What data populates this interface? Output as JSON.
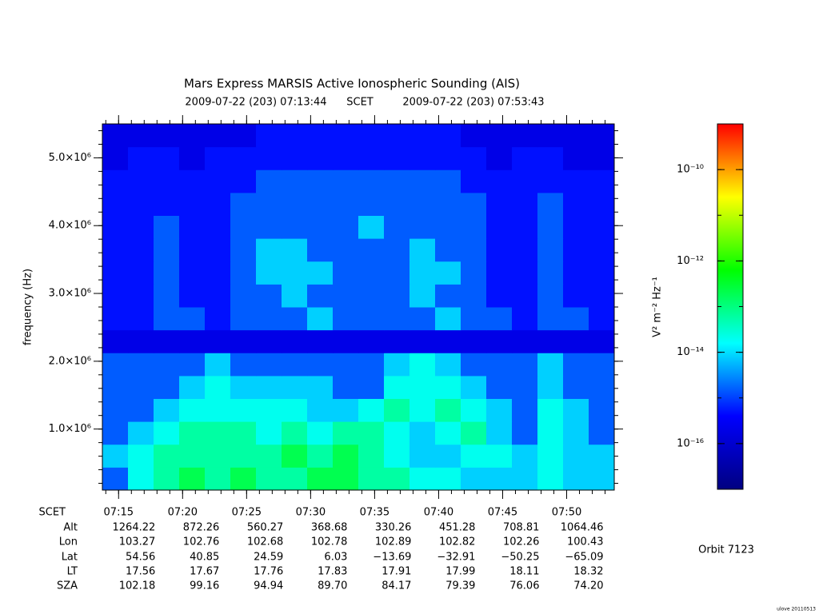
{
  "chart_data": {
    "type": "spectrogram",
    "title": "Mars Express MARSIS Active Ionospheric Sounding (AIS)",
    "start_label": "2009-07-22 (203) 07:13:44",
    "x_label": "SCET",
    "end_label": "2009-07-22 (203) 07:53:43",
    "y_label": "frequency (Hz)",
    "xlim": [
      "07:13:44",
      "07:53:43"
    ],
    "xticks": [
      "07:15",
      "07:20",
      "07:25",
      "07:30",
      "07:35",
      "07:40",
      "07:45",
      "07:50"
    ],
    "ylim": [
      100000,
      5500000
    ],
    "yticks": [
      {
        "value": 1000000,
        "label": "1.0×10⁶"
      },
      {
        "value": 2000000,
        "label": "2.0×10⁶"
      },
      {
        "value": 3000000,
        "label": "3.0×10⁶"
      },
      {
        "value": 4000000,
        "label": "4.0×10⁶"
      },
      {
        "value": 5000000,
        "label": "5.0×10⁶"
      }
    ],
    "z": [
      [
        1.5e-15,
        2e-14,
        6e-14,
        2e-13,
        6e-14,
        2e-13,
        6e-14,
        6e-14,
        2e-13,
        2e-13,
        6e-14,
        6e-14,
        2e-14,
        2e-14,
        8e-15,
        8e-15,
        8e-15,
        2e-14,
        8e-15,
        8e-15
      ],
      [
        8e-15,
        2e-14,
        6e-14,
        6e-14,
        6e-14,
        6e-14,
        6e-14,
        2e-13,
        6e-14,
        2e-13,
        6e-14,
        2e-14,
        8e-15,
        8e-15,
        2e-14,
        2e-14,
        8e-15,
        2e-14,
        8e-15,
        8e-15
      ],
      [
        1.5e-15,
        8e-15,
        2e-14,
        6e-14,
        6e-14,
        6e-14,
        2e-14,
        6e-14,
        2e-14,
        6e-14,
        6e-14,
        2e-14,
        8e-15,
        2e-14,
        6e-14,
        8e-15,
        1.5e-15,
        2e-14,
        8e-15,
        1.5e-15
      ],
      [
        1.5e-15,
        1.5e-15,
        8e-15,
        2e-14,
        2e-14,
        2e-14,
        2e-14,
        2e-14,
        8e-15,
        8e-15,
        2e-14,
        6e-14,
        2e-14,
        6e-14,
        2e-14,
        8e-15,
        1.5e-15,
        2e-14,
        8e-15,
        1.5e-15
      ],
      [
        1.5e-15,
        1.5e-15,
        1.5e-15,
        8e-15,
        2e-14,
        8e-15,
        8e-15,
        8e-15,
        8e-15,
        1.5e-15,
        1.5e-15,
        2e-14,
        2e-14,
        2e-14,
        8e-15,
        1.5e-15,
        1.5e-15,
        8e-15,
        1.5e-15,
        1.5e-15
      ],
      [
        1.5e-15,
        1.5e-15,
        1.5e-15,
        1.5e-15,
        8e-15,
        1.5e-15,
        1.5e-15,
        1.5e-15,
        1.5e-15,
        1.5e-15,
        1.5e-15,
        8e-15,
        2e-14,
        8e-15,
        1.5e-15,
        1.5e-15,
        1.5e-15,
        8e-15,
        1.5e-15,
        1.5e-15
      ],
      [
        2e-16,
        2e-16,
        2e-16,
        2e-16,
        2e-16,
        2e-16,
        2e-16,
        2e-16,
        2e-16,
        2e-16,
        2e-16,
        2e-16,
        2e-16,
        2e-16,
        2e-16,
        2e-16,
        2e-16,
        2e-16,
        2e-16,
        2e-16
      ],
      [
        5e-16,
        5e-16,
        1.5e-15,
        1.5e-15,
        5e-16,
        1.5e-15,
        1.5e-15,
        1.5e-15,
        8e-15,
        1.5e-15,
        1.5e-15,
        1.5e-15,
        1.5e-15,
        8e-15,
        1.5e-15,
        1.5e-15,
        5e-16,
        1.5e-15,
        1.5e-15,
        5e-16
      ],
      [
        5e-16,
        5e-16,
        1.5e-15,
        5e-16,
        5e-16,
        1.5e-15,
        1.5e-15,
        8e-15,
        1.5e-15,
        1.5e-15,
        1.5e-15,
        1.5e-15,
        8e-15,
        1.5e-15,
        1.5e-15,
        5e-16,
        5e-16,
        1.5e-15,
        5e-16,
        5e-16
      ],
      [
        5e-16,
        5e-16,
        1.5e-15,
        5e-16,
        5e-16,
        1.5e-15,
        8e-15,
        8e-15,
        8e-15,
        1.5e-15,
        1.5e-15,
        1.5e-15,
        8e-15,
        8e-15,
        1.5e-15,
        5e-16,
        5e-16,
        1.5e-15,
        5e-16,
        5e-16
      ],
      [
        5e-16,
        5e-16,
        1.5e-15,
        5e-16,
        5e-16,
        1.5e-15,
        8e-15,
        8e-15,
        1.5e-15,
        1.5e-15,
        1.5e-15,
        1.5e-15,
        8e-15,
        1.5e-15,
        1.5e-15,
        5e-16,
        5e-16,
        1.5e-15,
        5e-16,
        5e-16
      ],
      [
        5e-16,
        5e-16,
        1.5e-15,
        5e-16,
        5e-16,
        1.5e-15,
        1.5e-15,
        1.5e-15,
        1.5e-15,
        1.5e-15,
        8e-15,
        1.5e-15,
        1.5e-15,
        1.5e-15,
        1.5e-15,
        5e-16,
        5e-16,
        1.5e-15,
        5e-16,
        5e-16
      ],
      [
        5e-16,
        5e-16,
        5e-16,
        5e-16,
        5e-16,
        1.5e-15,
        1.5e-15,
        1.5e-15,
        1.5e-15,
        1.5e-15,
        1.5e-15,
        1.5e-15,
        1.5e-15,
        1.5e-15,
        1.5e-15,
        5e-16,
        5e-16,
        1.5e-15,
        5e-16,
        5e-16
      ],
      [
        5e-16,
        5e-16,
        5e-16,
        5e-16,
        5e-16,
        5e-16,
        1.5e-15,
        1.5e-15,
        1.5e-15,
        1.5e-15,
        1.5e-15,
        1.5e-15,
        1.5e-15,
        1.5e-15,
        5e-16,
        5e-16,
        5e-16,
        5e-16,
        5e-16,
        5e-16
      ],
      [
        2e-16,
        5e-16,
        5e-16,
        2e-16,
        5e-16,
        5e-16,
        5e-16,
        5e-16,
        5e-16,
        5e-16,
        5e-16,
        5e-16,
        5e-16,
        5e-16,
        5e-16,
        2e-16,
        5e-16,
        5e-16,
        2e-16,
        2e-16
      ],
      [
        2e-16,
        2e-16,
        2e-16,
        2e-16,
        2e-16,
        2e-16,
        5e-16,
        5e-16,
        5e-16,
        5e-16,
        5e-16,
        5e-16,
        5e-16,
        5e-16,
        2e-16,
        2e-16,
        2e-16,
        2e-16,
        2e-16,
        2e-16
      ]
    ],
    "colormap": [
      "#000080",
      "#0000ff",
      "#00ffff",
      "#00ff00",
      "#ffff00",
      "#ff0000"
    ],
    "zlim": [
      1e-17,
      1e-09
    ],
    "z_log": true,
    "zticks": [
      {
        "value": 1e-16,
        "label": "10⁻¹⁶"
      },
      {
        "value": 1e-14,
        "label": "10⁻¹⁴"
      },
      {
        "value": 1e-12,
        "label": "10⁻¹²"
      },
      {
        "value": 1e-10,
        "label": "10⁻¹⁰"
      }
    ],
    "z_label": "V² m⁻² Hz⁻¹"
  },
  "ephemeris": {
    "rows": [
      {
        "label": "Alt",
        "values": [
          "1264.22",
          "872.26",
          "560.27",
          "368.68",
          "330.26",
          "451.28",
          "708.81",
          "1064.46"
        ]
      },
      {
        "label": "Lon",
        "values": [
          "103.27",
          "102.76",
          "102.68",
          "102.78",
          "102.89",
          "102.82",
          "102.26",
          "100.43"
        ]
      },
      {
        "label": "Lat",
        "values": [
          "54.56",
          "40.85",
          "24.59",
          "6.03",
          "−13.69",
          "−32.91",
          "−50.25",
          "−65.09"
        ]
      },
      {
        "label": "LT",
        "values": [
          "17.56",
          "17.67",
          "17.76",
          "17.83",
          "17.91",
          "17.99",
          "18.11",
          "18.32"
        ]
      },
      {
        "label": "SZA",
        "values": [
          "102.18",
          "99.16",
          "94.94",
          "89.70",
          "84.17",
          "79.39",
          "76.06",
          "74.20"
        ]
      }
    ]
  },
  "orbit": "Orbit 7123",
  "credit": "ulove 20110513"
}
